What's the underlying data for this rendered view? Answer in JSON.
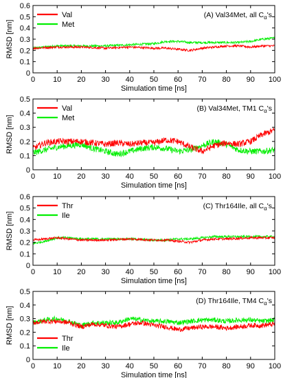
{
  "chart_data": [
    {
      "type": "line",
      "panel_label": "(A) Val34Met, all C",
      "panel_label_sub": "α",
      "panel_label_tail": "'s",
      "xlabel": "Simulation time [ns]",
      "ylabel": "RMSD [nm]",
      "xlim": [
        0,
        100
      ],
      "ylim": [
        0,
        0.6
      ],
      "xticks": [
        0,
        10,
        20,
        30,
        40,
        50,
        60,
        70,
        80,
        90,
        100
      ],
      "yticks": [
        0,
        0.1,
        0.2,
        0.3,
        0.4,
        0.5,
        0.6
      ],
      "legend_position": "top-left",
      "series": [
        {
          "name": "Val",
          "color": "#ff0000",
          "x": [
            0,
            10,
            20,
            30,
            40,
            50,
            55,
            60,
            65,
            70,
            75,
            80,
            85,
            90,
            95,
            100
          ],
          "y": [
            0.22,
            0.23,
            0.23,
            0.22,
            0.23,
            0.22,
            0.22,
            0.21,
            0.2,
            0.22,
            0.23,
            0.24,
            0.24,
            0.23,
            0.24,
            0.24
          ]
        },
        {
          "name": "Met",
          "color": "#00ee00",
          "x": [
            0,
            10,
            20,
            30,
            40,
            50,
            55,
            60,
            65,
            70,
            75,
            80,
            85,
            90,
            95,
            100
          ],
          "y": [
            0.22,
            0.24,
            0.24,
            0.24,
            0.25,
            0.26,
            0.28,
            0.28,
            0.27,
            0.27,
            0.27,
            0.27,
            0.27,
            0.28,
            0.3,
            0.31
          ]
        }
      ]
    },
    {
      "type": "line",
      "panel_label": "(B) Val34Met, TM1 C",
      "panel_label_sub": "α",
      "panel_label_tail": "'s",
      "xlabel": "Simulation time [ns]",
      "ylabel": "RMSD [nm]",
      "xlim": [
        0,
        100
      ],
      "ylim": [
        0,
        0.5
      ],
      "xticks": [
        0,
        10,
        20,
        30,
        40,
        50,
        60,
        70,
        80,
        90,
        100
      ],
      "yticks": [
        0,
        0.1,
        0.2,
        0.3,
        0.4,
        0.5
      ],
      "legend_position": "top-left",
      "series": [
        {
          "name": "Val",
          "color": "#ff0000",
          "x": [
            0,
            5,
            10,
            15,
            20,
            25,
            30,
            35,
            40,
            45,
            50,
            55,
            60,
            65,
            70,
            75,
            80,
            85,
            90,
            95,
            100
          ],
          "y": [
            0.15,
            0.19,
            0.2,
            0.2,
            0.2,
            0.19,
            0.18,
            0.19,
            0.18,
            0.19,
            0.19,
            0.21,
            0.2,
            0.16,
            0.13,
            0.17,
            0.19,
            0.18,
            0.2,
            0.25,
            0.28
          ]
        },
        {
          "name": "Met",
          "color": "#00ee00",
          "x": [
            0,
            5,
            10,
            15,
            20,
            25,
            30,
            35,
            40,
            45,
            50,
            55,
            60,
            65,
            70,
            75,
            80,
            85,
            90,
            95,
            100
          ],
          "y": [
            0.12,
            0.14,
            0.16,
            0.17,
            0.18,
            0.15,
            0.13,
            0.11,
            0.13,
            0.15,
            0.16,
            0.15,
            0.13,
            0.14,
            0.17,
            0.2,
            0.18,
            0.14,
            0.13,
            0.13,
            0.14
          ]
        }
      ]
    },
    {
      "type": "line",
      "panel_label": "(C) Thr164Ile, all C",
      "panel_label_sub": "α",
      "panel_label_tail": "'s",
      "xlabel": "Simulation time [ns]",
      "ylabel": "RMSD [nm]",
      "xlim": [
        0,
        100
      ],
      "ylim": [
        0,
        0.6
      ],
      "xticks": [
        0,
        10,
        20,
        30,
        40,
        50,
        60,
        70,
        80,
        90,
        100
      ],
      "yticks": [
        0,
        0.1,
        0.2,
        0.3,
        0.4,
        0.5,
        0.6
      ],
      "legend_position": "top-left",
      "series": [
        {
          "name": "Thr",
          "color": "#ff0000",
          "x": [
            0,
            5,
            10,
            15,
            20,
            30,
            40,
            50,
            55,
            60,
            65,
            70,
            75,
            80,
            90,
            100
          ],
          "y": [
            0.22,
            0.23,
            0.24,
            0.23,
            0.22,
            0.22,
            0.23,
            0.22,
            0.22,
            0.21,
            0.2,
            0.22,
            0.23,
            0.23,
            0.24,
            0.24
          ]
        },
        {
          "name": "Ile",
          "color": "#00ee00",
          "x": [
            0,
            5,
            10,
            15,
            20,
            30,
            40,
            50,
            55,
            60,
            65,
            70,
            75,
            80,
            90,
            100
          ],
          "y": [
            0.19,
            0.21,
            0.24,
            0.24,
            0.23,
            0.23,
            0.23,
            0.22,
            0.22,
            0.23,
            0.23,
            0.24,
            0.25,
            0.25,
            0.25,
            0.25
          ]
        }
      ]
    },
    {
      "type": "line",
      "panel_label": "(D) Thr164Ile, TM4 C",
      "panel_label_sub": "α",
      "panel_label_tail": "'s",
      "xlabel": "Simulation time [ns]",
      "ylabel": "RMSD [nm]",
      "xlim": [
        0,
        100
      ],
      "ylim": [
        0,
        0.5
      ],
      "xticks": [
        0,
        10,
        20,
        30,
        40,
        50,
        60,
        70,
        80,
        90,
        100
      ],
      "yticks": [
        0,
        0.1,
        0.2,
        0.3,
        0.4,
        0.5
      ],
      "legend_position": "bottom-left",
      "series": [
        {
          "name": "Thr",
          "color": "#ff0000",
          "x": [
            0,
            5,
            10,
            15,
            20,
            25,
            30,
            35,
            40,
            45,
            50,
            55,
            60,
            65,
            70,
            75,
            80,
            85,
            90,
            95,
            100
          ],
          "y": [
            0.27,
            0.28,
            0.28,
            0.27,
            0.24,
            0.26,
            0.25,
            0.24,
            0.26,
            0.27,
            0.25,
            0.24,
            0.22,
            0.23,
            0.24,
            0.24,
            0.23,
            0.24,
            0.25,
            0.25,
            0.26
          ]
        },
        {
          "name": "Ile",
          "color": "#00ee00",
          "x": [
            0,
            5,
            10,
            15,
            20,
            25,
            30,
            35,
            40,
            45,
            50,
            55,
            60,
            65,
            70,
            75,
            80,
            85,
            90,
            95,
            100
          ],
          "y": [
            0.27,
            0.29,
            0.3,
            0.28,
            0.25,
            0.27,
            0.27,
            0.27,
            0.3,
            0.29,
            0.28,
            0.28,
            0.27,
            0.28,
            0.29,
            0.29,
            0.28,
            0.29,
            0.29,
            0.28,
            0.29
          ]
        }
      ]
    }
  ]
}
